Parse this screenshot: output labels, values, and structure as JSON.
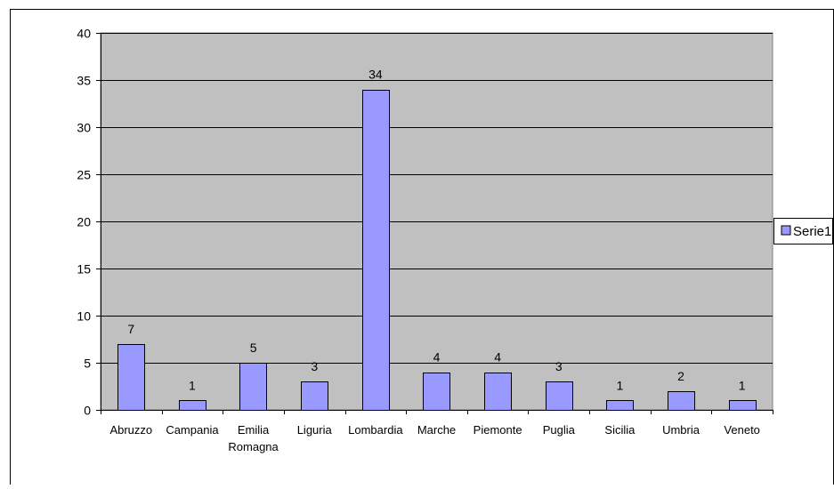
{
  "chart_data": {
    "type": "bar",
    "title": "",
    "xlabel": "",
    "ylabel": "",
    "categories": [
      [
        "Abruzzo"
      ],
      [
        "Campania"
      ],
      [
        "Emilia",
        "Romagna"
      ],
      [
        "Liguria"
      ],
      [
        "Lombardia"
      ],
      [
        "Marche"
      ],
      [
        "Piemonte"
      ],
      [
        "Puglia"
      ],
      [
        "Sicilia"
      ],
      [
        "Umbria"
      ],
      [
        "Veneto"
      ]
    ],
    "series": [
      {
        "name": "Serie1",
        "values": [
          7,
          1,
          5,
          3,
          34,
          4,
          4,
          3,
          1,
          2,
          1
        ],
        "color": "#9999ff"
      }
    ],
    "data_labels": [
      "7",
      "1",
      "5",
      "3",
      "34",
      "4",
      "4",
      "3",
      "1",
      "2",
      "1"
    ],
    "ylim": [
      0,
      40
    ],
    "y_ticks": [
      0,
      5,
      10,
      15,
      20,
      25,
      30,
      35,
      40
    ],
    "y_tick_labels": [
      "0",
      "5",
      "10",
      "15",
      "20",
      "25",
      "30",
      "35",
      "40"
    ],
    "grid": true,
    "legend_position": "right",
    "plot_background": "#c0c0c0",
    "bar_edge_color": "#000000"
  }
}
